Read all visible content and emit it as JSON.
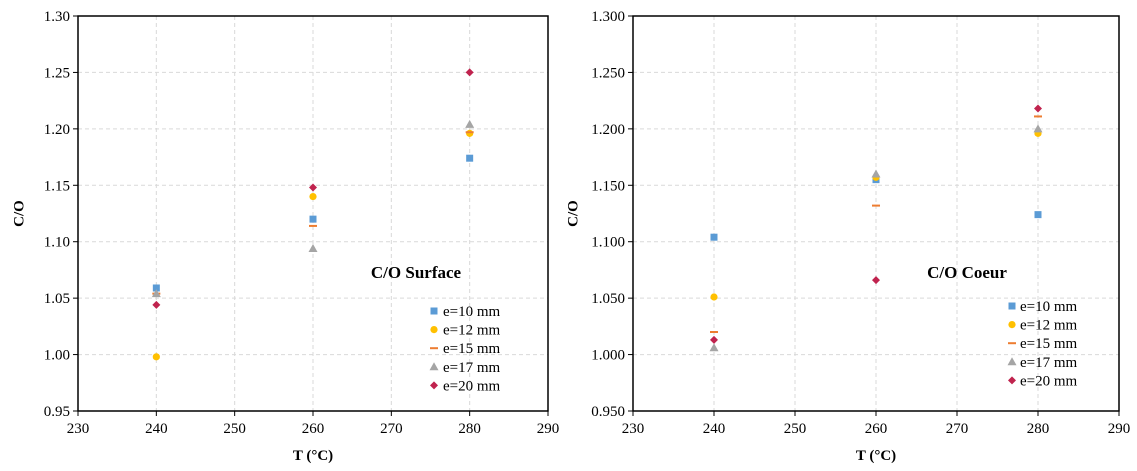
{
  "chart_data": [
    {
      "type": "scatter",
      "title": "C/O Surface",
      "xlabel": "T (°C)",
      "ylabel": "C/O",
      "xlim": [
        230,
        290
      ],
      "ylim": [
        0.95,
        1.3
      ],
      "x_ticks": [
        "230",
        "240",
        "250",
        "260",
        "270",
        "280",
        "290"
      ],
      "y_ticks": [
        "0.95",
        "1.00",
        "1.05",
        "1.10",
        "1.15",
        "1.20",
        "1.25",
        "1.30"
      ],
      "grid": true,
      "legend_position": "bottom-right",
      "series": [
        {
          "name": "e=10 mm",
          "marker": "square",
          "color": "#5B9BD5",
          "x": [
            240,
            260,
            280
          ],
          "y": [
            1.059,
            1.12,
            1.174
          ]
        },
        {
          "name": "e=12 mm",
          "marker": "circle",
          "color": "#FFC000",
          "x": [
            240,
            260,
            280
          ],
          "y": [
            0.998,
            1.14,
            1.196
          ]
        },
        {
          "name": "e=15 mm",
          "marker": "dash",
          "color": "#ED7D31",
          "x": [
            240,
            260,
            280
          ],
          "y": [
            1.054,
            1.114,
            1.197
          ]
        },
        {
          "name": "e=17 mm",
          "marker": "triangle",
          "color": "#A5A5A5",
          "x": [
            240,
            260,
            280
          ],
          "y": [
            1.054,
            1.094,
            1.204
          ]
        },
        {
          "name": "e=20 mm",
          "marker": "diamond",
          "color": "#C0234E",
          "x": [
            240,
            260,
            280
          ],
          "y": [
            1.044,
            1.148,
            1.25
          ]
        }
      ]
    },
    {
      "type": "scatter",
      "title": "C/O Coeur",
      "xlabel": "T (°C)",
      "ylabel": "C/O",
      "xlim": [
        230,
        290
      ],
      "ylim": [
        0.95,
        1.3
      ],
      "x_ticks": [
        "230",
        "240",
        "250",
        "260",
        "270",
        "280",
        "290"
      ],
      "y_ticks": [
        "0.950",
        "1.000",
        "1.050",
        "1.100",
        "1.150",
        "1.200",
        "1.250",
        "1.300"
      ],
      "grid": true,
      "legend_position": "bottom-right",
      "series": [
        {
          "name": "e=10 mm",
          "marker": "square",
          "color": "#5B9BD5",
          "x": [
            240,
            260,
            280
          ],
          "y": [
            1.104,
            1.155,
            1.124
          ]
        },
        {
          "name": "e=12 mm",
          "marker": "circle",
          "color": "#FFC000",
          "x": [
            240,
            260,
            280
          ],
          "y": [
            1.051,
            1.157,
            1.196
          ]
        },
        {
          "name": "e=15 mm",
          "marker": "dash",
          "color": "#ED7D31",
          "x": [
            240,
            260,
            280
          ],
          "y": [
            1.02,
            1.132,
            1.211
          ]
        },
        {
          "name": "e=17 mm",
          "marker": "triangle",
          "color": "#A5A5A5",
          "x": [
            240,
            260,
            280
          ],
          "y": [
            1.006,
            1.16,
            1.2
          ]
        },
        {
          "name": "e=20 mm",
          "marker": "diamond",
          "color": "#C0234E",
          "x": [
            240,
            260,
            280
          ],
          "y": [
            1.013,
            1.066,
            1.218
          ]
        }
      ]
    }
  ]
}
